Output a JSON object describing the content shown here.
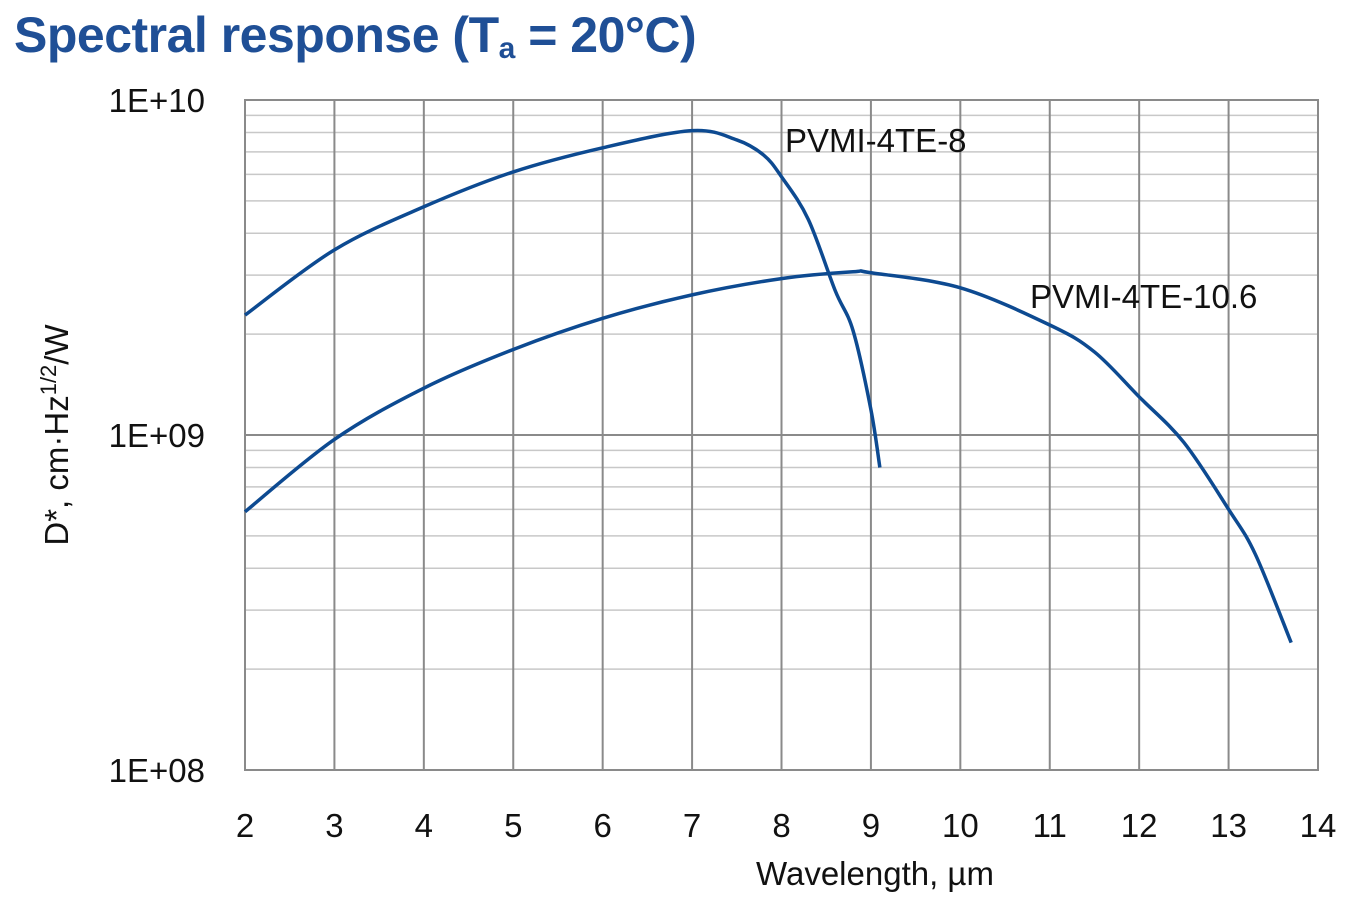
{
  "title": {
    "main": "Spectral response (T",
    "sub": "a",
    "rest": " = 20°C)"
  },
  "chart_data": {
    "type": "line",
    "xlabel": "Wavelength, µm",
    "ylabel": {
      "main": "D*, cm·Hz",
      "sup": "1/2",
      "rest": "/W"
    },
    "xlim": [
      2,
      14
    ],
    "ylim": [
      100000000.0,
      10000000000.0
    ],
    "yscale": "log",
    "grid": true,
    "xticks": [
      "2",
      "3",
      "4",
      "5",
      "6",
      "7",
      "8",
      "9",
      "10",
      "11",
      "12",
      "13",
      "14"
    ],
    "yticks": [
      "1E+08",
      "1E+09",
      "1E+10"
    ],
    "series": [
      {
        "name": "PVMI-4TE-8",
        "color": "#0d4a91",
        "x": [
          2,
          3,
          4,
          5,
          6,
          7,
          7.5,
          7.8,
          8,
          8.3,
          8.6,
          8.8,
          9,
          9.1
        ],
        "y": [
          2280000000.0,
          3570000000.0,
          4800000000.0,
          6100000000.0,
          7200000000.0,
          8100000000.0,
          7600000000.0,
          6850000000.0,
          5900000000.0,
          4400000000.0,
          2700000000.0,
          2050000000.0,
          1190000000.0,
          800000000.0
        ]
      },
      {
        "name": "PVMI-4TE-10.6",
        "color": "#0d4a91",
        "x": [
          2,
          3,
          4,
          5,
          6,
          7,
          8,
          8.8,
          9,
          10,
          11,
          11.5,
          12,
          12.5,
          13,
          13.3,
          13.7
        ],
        "y": [
          590000000.0,
          970000000.0,
          1380000000.0,
          1800000000.0,
          2230000000.0,
          2620000000.0,
          2930000000.0,
          3070000000.0,
          3050000000.0,
          2750000000.0,
          2130000000.0,
          1770000000.0,
          1300000000.0,
          950000000.0,
          600000000.0,
          440000000.0,
          240000000.0
        ]
      }
    ]
  }
}
